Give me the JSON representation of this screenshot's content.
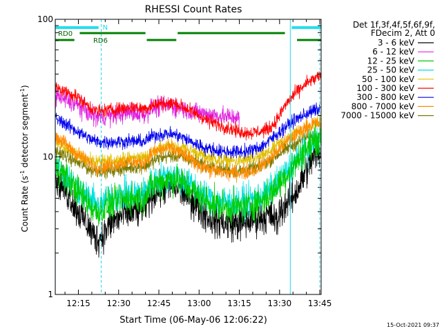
{
  "chart_data": {
    "type": "line",
    "title": "RHESSI Count Rates",
    "xlabel": "Start Time (06-May-06 12:06:22)",
    "ylabel_main": "Count Rate (s",
    "ylabel_sup1": "-1",
    "ylabel_mid": " detector segment",
    "ylabel_sup2": "-1",
    "ylabel_end": ")",
    "y_scale": "log",
    "xlim_minutes": [
      6.37,
      105.5
    ],
    "ylim": [
      1,
      100
    ],
    "x_ticks": [
      {
        "label": "12:15",
        "minute": 15
      },
      {
        "label": "12:30",
        "minute": 30
      },
      {
        "label": "12:45",
        "minute": 45
      },
      {
        "label": "13:00",
        "minute": 60
      },
      {
        "label": "13:15",
        "minute": 75
      },
      {
        "label": "13:30",
        "minute": 90
      },
      {
        "label": "13:45",
        "minute": 105
      }
    ],
    "y_ticks": [
      {
        "label": "1",
        "value": 1
      },
      {
        "label": "10",
        "value": 10
      },
      {
        "label": "100",
        "value": 100
      }
    ],
    "legend": {
      "header1": "Det 1f,3f,4f,5f,6f,9f,",
      "header2": "FDecim 2, Att 0",
      "placement": "right"
    },
    "series": [
      {
        "name": "3 - 6 keV",
        "color": "#000000",
        "x": [
          6.4,
          9,
          12,
          15,
          18,
          20,
          22,
          24,
          26,
          28,
          30,
          32,
          34,
          36,
          38,
          40,
          42,
          44,
          46,
          48,
          50,
          52,
          54,
          56,
          58,
          60,
          62,
          64,
          66,
          68,
          70,
          72,
          74,
          76,
          78,
          80,
          82,
          84,
          86,
          88,
          89,
          90,
          92,
          94,
          96,
          98,
          100,
          102,
          104,
          105.4
        ],
        "y": [
          7.0,
          6.2,
          5.0,
          4.0,
          3.3,
          2.8,
          2.5,
          2.7,
          3.1,
          3.4,
          3.6,
          3.8,
          3.9,
          4.0,
          4.1,
          4.4,
          5.2,
          5.6,
          5.8,
          6.0,
          6.1,
          6.0,
          5.6,
          5.2,
          4.7,
          4.3,
          3.9,
          3.6,
          3.5,
          3.4,
          3.3,
          3.3,
          3.3,
          3.3,
          3.4,
          3.5,
          3.6,
          3.7,
          3.8,
          3.6,
          3.2,
          4.0,
          4.5,
          4.8,
          5.5,
          6.5,
          8.0,
          9.5,
          10.5,
          11.0
        ]
      },
      {
        "name": "6 - 12 keV",
        "color": "#e020e0",
        "x": [
          6.4,
          9,
          12,
          15,
          18,
          20,
          22,
          24,
          26,
          28,
          30,
          32,
          34,
          36,
          38,
          40,
          42,
          44,
          46,
          48,
          50,
          52,
          54,
          56,
          58,
          60,
          62,
          64,
          66,
          68,
          70,
          72,
          74,
          75
        ],
        "y": [
          28.0,
          26.5,
          25.0,
          23.5,
          21.5,
          20.0,
          19.5,
          19.8,
          20.0,
          20.0,
          20.5,
          20.8,
          21.0,
          21.0,
          20.5,
          20.5,
          22.5,
          23.0,
          23.2,
          23.5,
          23.5,
          23.0,
          22.5,
          21.5,
          21.0,
          20.8,
          20.5,
          20.3,
          20.0,
          19.8,
          19.6,
          19.5,
          19.5,
          19.0
        ]
      },
      {
        "name": "12 - 25 keV",
        "color": "#00cc00",
        "x": [
          6.4,
          9,
          12,
          15,
          18,
          20,
          22,
          24,
          26,
          28,
          30,
          32,
          34,
          36,
          38,
          40,
          42,
          44,
          46,
          48,
          50,
          52,
          54,
          56,
          58,
          60,
          62,
          64,
          66,
          68,
          70,
          72,
          74,
          76,
          78,
          80,
          82,
          84,
          86,
          88,
          90,
          92,
          94,
          96,
          98,
          100,
          102,
          104,
          105.4
        ],
        "y": [
          8.5,
          7.6,
          6.5,
          5.6,
          4.8,
          4.3,
          4.0,
          4.1,
          4.4,
          4.6,
          4.8,
          4.9,
          5.0,
          5.0,
          5.0,
          5.2,
          6.0,
          6.4,
          6.6,
          6.8,
          6.9,
          6.8,
          6.4,
          6.0,
          5.6,
          5.2,
          4.9,
          4.7,
          4.5,
          4.4,
          4.3,
          4.3,
          4.3,
          4.3,
          4.4,
          4.5,
          4.7,
          4.9,
          5.2,
          5.7,
          6.5,
          7.2,
          8.0,
          9.0,
          10.2,
          11.5,
          12.5,
          13.5,
          14.0
        ]
      },
      {
        "name": "25 - 50 keV",
        "color": "#00e0e0",
        "x": [
          6.4,
          9,
          12,
          15,
          18,
          20,
          22,
          24,
          26,
          28,
          30,
          32,
          34,
          36,
          38,
          40,
          42,
          44,
          46,
          48,
          50,
          52,
          54,
          56,
          58,
          60,
          62,
          64,
          66,
          68,
          70,
          72,
          74,
          76,
          78,
          80,
          82,
          84,
          86,
          88,
          90,
          92,
          94,
          96,
          98,
          100,
          102,
          104,
          105.4
        ],
        "y": [
          9.0,
          8.0,
          6.8,
          5.9,
          5.2,
          4.8,
          4.5,
          4.6,
          4.9,
          5.1,
          5.2,
          5.3,
          5.4,
          5.4,
          5.4,
          5.6,
          6.4,
          6.8,
          7.0,
          7.2,
          7.3,
          7.2,
          6.8,
          6.4,
          6.0,
          5.6,
          5.3,
          5.0,
          4.9,
          4.8,
          4.7,
          4.7,
          4.7,
          4.7,
          4.8,
          4.9,
          5.1,
          5.3,
          5.6,
          6.1,
          6.8,
          7.5,
          8.3,
          9.3,
          10.4,
          11.5,
          12.5,
          13.2,
          13.5
        ]
      },
      {
        "name": "50 - 100 keV",
        "color": "#e0c000",
        "x": [
          6.4,
          10,
          15,
          20,
          25,
          30,
          35,
          40,
          45,
          50,
          55,
          60,
          65,
          70,
          75,
          80,
          85,
          90,
          95,
          100,
          105.4
        ],
        "y": [
          12.5,
          11.5,
          10.2,
          9.3,
          9.2,
          9.5,
          9.8,
          10.0,
          11.5,
          12.0,
          11.5,
          10.5,
          9.7,
          9.4,
          9.3,
          9.6,
          10.5,
          12.5,
          14.5,
          16.5,
          18.0
        ]
      },
      {
        "name": "100 - 300 keV",
        "color": "#ff0000",
        "x": [
          6.4,
          9,
          12,
          15,
          18,
          20,
          22,
          24,
          26,
          28,
          30,
          32,
          34,
          36,
          38,
          40,
          42,
          44,
          46,
          48,
          50,
          52,
          54,
          56,
          58,
          60,
          62,
          64,
          66,
          68,
          70,
          72,
          74,
          76,
          78,
          80,
          82,
          84,
          86,
          88,
          90,
          92,
          94,
          96,
          98,
          100,
          102,
          104,
          105.4
        ],
        "y": [
          32.0,
          30.5,
          29.0,
          27.0,
          24.0,
          22.5,
          21.5,
          21.5,
          22.0,
          22.0,
          22.5,
          22.5,
          23.0,
          23.0,
          22.5,
          22.5,
          23.5,
          24.0,
          24.5,
          24.5,
          24.5,
          24.0,
          23.0,
          22.0,
          21.0,
          20.0,
          19.0,
          18.0,
          17.5,
          17.0,
          16.5,
          16.0,
          15.5,
          15.2,
          15.0,
          15.0,
          15.2,
          15.5,
          16.0,
          17.5,
          20.0,
          23.5,
          26.5,
          29.0,
          31.5,
          34.0,
          36.0,
          37.5,
          38.0
        ]
      },
      {
        "name": "300 - 800 keV",
        "color": "#0000ee",
        "x": [
          6.4,
          9,
          12,
          15,
          18,
          20,
          22,
          24,
          26,
          28,
          30,
          32,
          34,
          36,
          38,
          40,
          42,
          44,
          46,
          48,
          50,
          52,
          54,
          56,
          58,
          60,
          62,
          64,
          66,
          68,
          70,
          72,
          74,
          76,
          78,
          80,
          82,
          84,
          86,
          88,
          90,
          92,
          94,
          96,
          98,
          100,
          102,
          104,
          105.4
        ],
        "y": [
          19.0,
          18.0,
          16.5,
          15.2,
          14.0,
          13.3,
          12.9,
          12.8,
          12.8,
          12.9,
          12.9,
          12.9,
          13.0,
          13.0,
          12.9,
          13.0,
          14.0,
          14.4,
          14.6,
          14.7,
          14.6,
          14.3,
          13.8,
          13.2,
          12.6,
          12.1,
          11.7,
          11.4,
          11.2,
          11.0,
          10.9,
          10.9,
          10.9,
          10.9,
          11.0,
          11.2,
          11.6,
          12.2,
          13.0,
          14.0,
          15.2,
          16.4,
          17.6,
          18.6,
          19.6,
          20.6,
          21.4,
          22.0,
          22.2
        ]
      },
      {
        "name": "800 - 7000 keV",
        "color": "#ff8c00",
        "x": [
          6.4,
          9,
          12,
          15,
          18,
          20,
          22,
          24,
          26,
          28,
          30,
          32,
          34,
          36,
          38,
          40,
          42,
          44,
          46,
          48,
          50,
          52,
          54,
          56,
          58,
          60,
          62,
          64,
          66,
          68,
          70,
          72,
          74,
          76,
          78,
          80,
          82,
          84,
          86,
          88,
          90,
          92,
          94,
          96,
          98,
          100,
          102,
          104,
          105.4
        ],
        "y": [
          14.0,
          13.0,
          11.5,
          10.3,
          9.4,
          8.8,
          8.4,
          8.4,
          8.6,
          8.8,
          9.0,
          9.1,
          9.2,
          9.2,
          9.1,
          9.3,
          10.5,
          11.0,
          11.3,
          11.5,
          11.4,
          11.0,
          10.4,
          9.8,
          9.2,
          8.8,
          8.4,
          8.1,
          7.9,
          7.8,
          7.7,
          7.7,
          7.7,
          7.7,
          7.8,
          8.0,
          8.4,
          8.9,
          9.5,
          10.4,
          11.5,
          12.5,
          13.5,
          14.5,
          15.5,
          16.5,
          17.2,
          17.6,
          17.8
        ]
      },
      {
        "name": "7000 - 15000 keV",
        "color": "#7a7a00",
        "x": [
          6.4,
          10,
          15,
          20,
          25,
          30,
          35,
          40,
          45,
          50,
          55,
          60,
          65,
          70,
          75,
          80,
          85,
          90,
          95,
          100,
          105.4
        ],
        "y": [
          11.0,
          10.2,
          9.0,
          8.0,
          7.9,
          8.1,
          8.4,
          8.6,
          9.8,
          10.2,
          9.8,
          9.0,
          8.3,
          8.0,
          7.9,
          8.2,
          9.0,
          10.6,
          12.2,
          13.8,
          14.8
        ]
      }
    ],
    "status_bars": {
      "cyan": [
        {
          "label": "",
          "from": 6.4,
          "to": 22.5
        },
        {
          "label": "N",
          "from": 23.0,
          "to": 23.6
        },
        {
          "label": "",
          "from": 94.5,
          "to": 105.4
        }
      ],
      "green_upper": [
        {
          "label": "RD0",
          "from": 6.4,
          "to": 15.5
        },
        {
          "label": "",
          "from": 15.5,
          "to": 40.0
        },
        {
          "label": "",
          "from": 52.0,
          "to": 92.0
        }
      ],
      "green_lower": [
        {
          "label": "",
          "from": 6.4,
          "to": 13.5
        },
        {
          "label": "RD6",
          "from": 19.5,
          "to": 21.0
        },
        {
          "label": "",
          "from": 40.5,
          "to": 51.5
        },
        {
          "label": "",
          "from": 96.5,
          "to": 105.4
        }
      ]
    },
    "vertical_lines": [
      {
        "minute": 6.4,
        "style": "solid"
      },
      {
        "minute": 23.5,
        "style": "dashed"
      },
      {
        "minute": 94.0,
        "style": "solid"
      },
      {
        "minute": 105.0,
        "style": "dashed"
      }
    ],
    "timestamp": "15-Oct-2021 09:37"
  }
}
